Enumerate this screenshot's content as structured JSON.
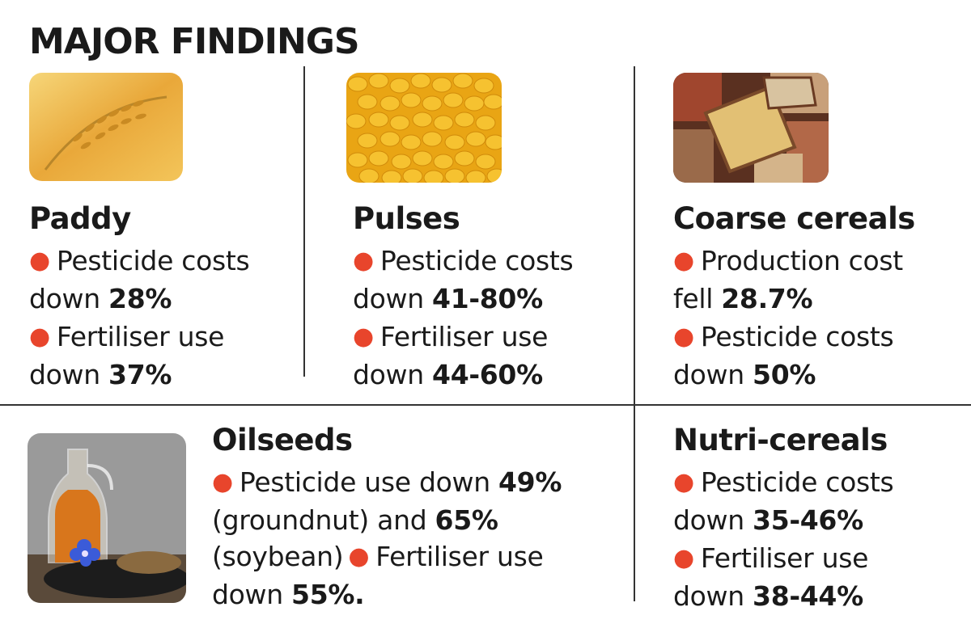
{
  "title": "MAJOR FINDINGS",
  "colors": {
    "bullet": "#e8452c",
    "text": "#1a1a1a",
    "divider": "#333333"
  },
  "icons": {
    "paddy": "paddy-photo",
    "pulses": "pulses-photo",
    "coarse": "coarse-cereals-photo",
    "oilseeds": "oilseeds-photo"
  },
  "paddy": {
    "heading": "Paddy",
    "p1_text": "Pesticide costs down ",
    "p1_value": "28%",
    "p2_text": "Fertiliser use down ",
    "p2_value": "37%"
  },
  "pulses": {
    "heading": "Pulses",
    "p1_text": "Pesticide costs down ",
    "p1_value": "41-80%",
    "p2_text": "Fertiliser use down ",
    "p2_value": "44-60%"
  },
  "coarse": {
    "heading": "Coarse cereals",
    "p1_text": "Production cost fell ",
    "p1_value": "28.7%",
    "p2_text": "Pesticide costs down ",
    "p2_value": "50%"
  },
  "oilseeds": {
    "heading": "Oilseeds",
    "s1_text": "Pesticide use down ",
    "s1_value_a": "49%",
    "s1_mid": " (groundnut) and ",
    "s1_value_b": "65%",
    "s1_end": " (soybean)",
    "s2_text": "Fertiliser use down ",
    "s2_value": "55%."
  },
  "nutri": {
    "heading": "Nutri-cereals",
    "p1_text": "Pesticide costs down ",
    "p1_value": "35-46%",
    "p2_text": "Fertiliser use down ",
    "p2_value": "38-44%"
  }
}
